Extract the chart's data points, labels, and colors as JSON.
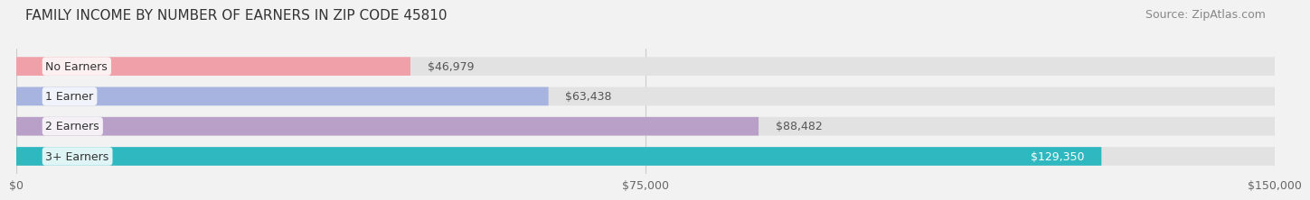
{
  "title": "FAMILY INCOME BY NUMBER OF EARNERS IN ZIP CODE 45810",
  "source": "Source: ZipAtlas.com",
  "categories": [
    "No Earners",
    "1 Earner",
    "2 Earners",
    "3+ Earners"
  ],
  "values": [
    46979,
    63438,
    88482,
    129350
  ],
  "bar_colors": [
    "#f0a0a8",
    "#a8b4e0",
    "#b8a0c8",
    "#30b8c0"
  ],
  "label_colors": [
    "#555555",
    "#555555",
    "#555555",
    "#ffffff"
  ],
  "xlim": [
    0,
    150000
  ],
  "xticks": [
    0,
    75000,
    150000
  ],
  "xtick_labels": [
    "$0",
    "$75,000",
    "$150,000"
  ],
  "background_color": "#f2f2f2",
  "bar_bg_color": "#e2e2e2",
  "title_fontsize": 11,
  "source_fontsize": 9,
  "label_fontsize": 9,
  "value_fontsize": 9,
  "category_fontsize": 9
}
